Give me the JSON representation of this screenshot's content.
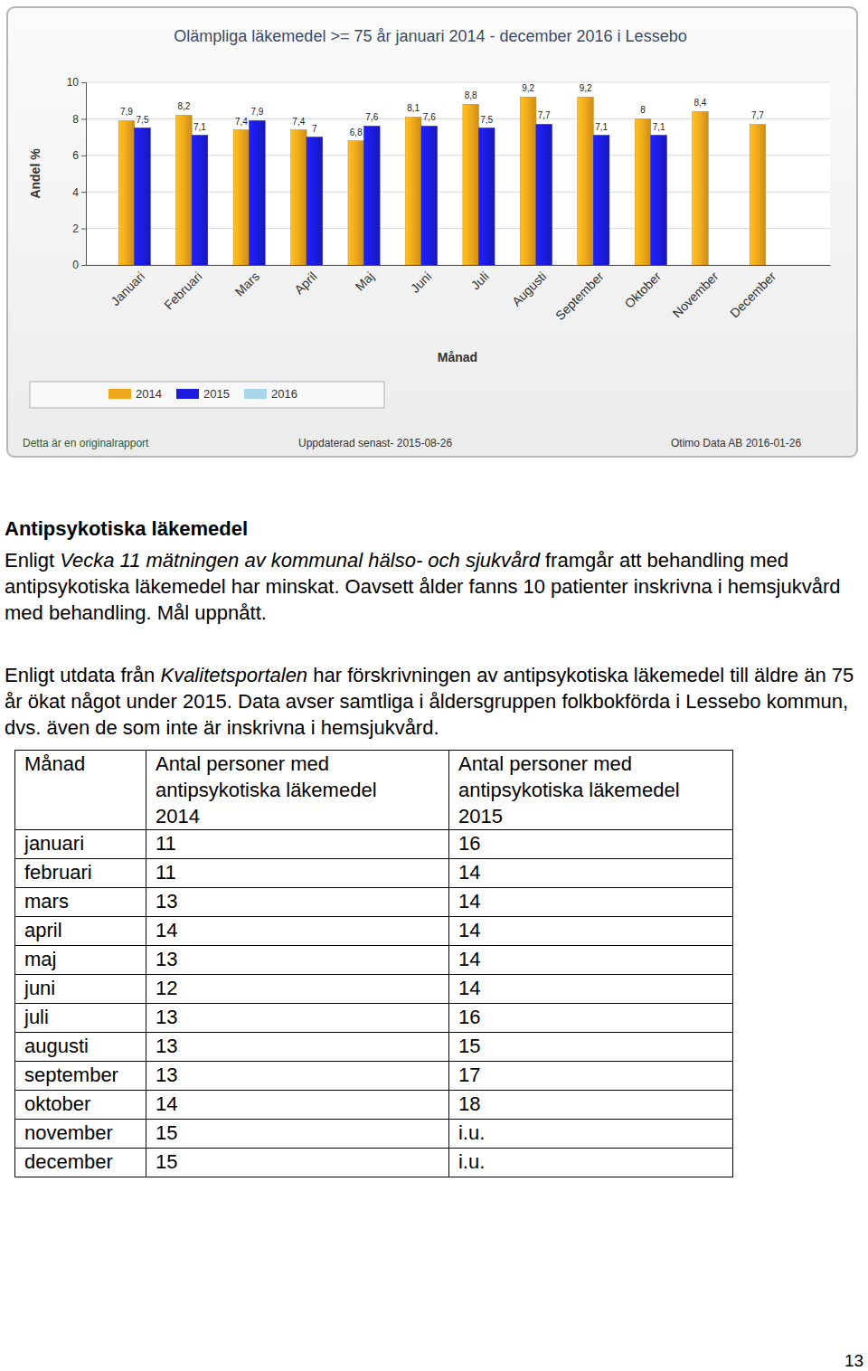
{
  "chart_data": {
    "type": "bar",
    "title": "Olämpliga läkemedel >= 75 år januari 2014 - december 2016 i Lessebo",
    "x_label": "Månad",
    "y_label": "Andel %",
    "categories": [
      "Januari",
      "Februari",
      "Mars",
      "April",
      "Maj",
      "Juni",
      "Juli",
      "Augusti",
      "September",
      "Oktober",
      "November",
      "December"
    ],
    "series": [
      {
        "name": "2014",
        "color": "#f0a81c",
        "values": [
          7.9,
          8.2,
          7.4,
          7.4,
          6.8,
          8.1,
          8.8,
          9.2,
          9.2,
          8,
          8.4,
          7.7
        ],
        "value_labels": [
          "7,9",
          "8,2",
          "7,4",
          "7,4",
          "6,8",
          "8,1",
          "8,8",
          "9,2",
          "9,2",
          "8",
          "8,4",
          "7,7"
        ]
      },
      {
        "name": "2015",
        "color": "#1c1ce0",
        "values": [
          7.5,
          7.1,
          7.9,
          7,
          7.6,
          7.6,
          7.5,
          7.7,
          7.1,
          7.1,
          null,
          null
        ],
        "value_labels": [
          "7,5",
          "7,1",
          "7,9",
          "7",
          "7,6",
          "7,6",
          "7,5",
          "7,7",
          "7,1",
          "7,1",
          null,
          null
        ]
      },
      {
        "name": "2016",
        "color": "#a8d4ec",
        "values": [
          null,
          null,
          null,
          null,
          null,
          null,
          null,
          null,
          null,
          null,
          null,
          null
        ]
      }
    ],
    "ylim": [
      0,
      10
    ],
    "yticks": [
      0,
      2,
      4,
      6,
      8,
      10
    ],
    "grid": true,
    "data_labels": true,
    "legend": "bottom",
    "annotations": [
      "Detta är en originalrapport",
      "Uppdaterad senast- 2015-08-26",
      "Otimo Data AB 2016-01-26"
    ]
  },
  "document": {
    "heading": "Antipsykotiska läkemedel",
    "paragraphs": [
      {
        "runs": [
          "Enligt ",
          "Vecka 11 mätningen av kommunal hälso- och sjukvård",
          " framgår att behandling med antipsykotiska läkemedel har minskat. Oavsett ålder fanns 10 patienter inskrivna i hemsjukvård med behandling. Mål uppnått."
        ]
      },
      {
        "runs": [
          "Enligt utdata från ",
          "Kvalitetsportalen",
          " har förskrivningen av antipsykotiska läkemedel till äldre än 75 år ökat något under 2015. Data avser samtliga i åldersgruppen folkbokförda i Lessebo kommun, dvs. även de som inte är inskrivna i hemsjukvård."
        ]
      }
    ],
    "table": {
      "header": [
        "Månad",
        "Antal personer med antipsykotiska läkemedel 2014",
        "Antal personer med antipsykotiska läkemedel 2015"
      ],
      "rows": [
        [
          "januari",
          11,
          16
        ],
        [
          "februari",
          11,
          14
        ],
        [
          "mars",
          13,
          14
        ],
        [
          "april",
          14,
          14
        ],
        [
          "maj",
          13,
          14
        ],
        [
          "juni",
          12,
          14
        ],
        [
          "juli",
          13,
          16
        ],
        [
          "augusti",
          13,
          15
        ],
        [
          "september",
          13,
          17
        ],
        [
          "oktober",
          14,
          18
        ],
        [
          "november",
          15,
          "i.u."
        ],
        [
          "december",
          15,
          "i.u."
        ]
      ]
    },
    "page_number": "13"
  }
}
